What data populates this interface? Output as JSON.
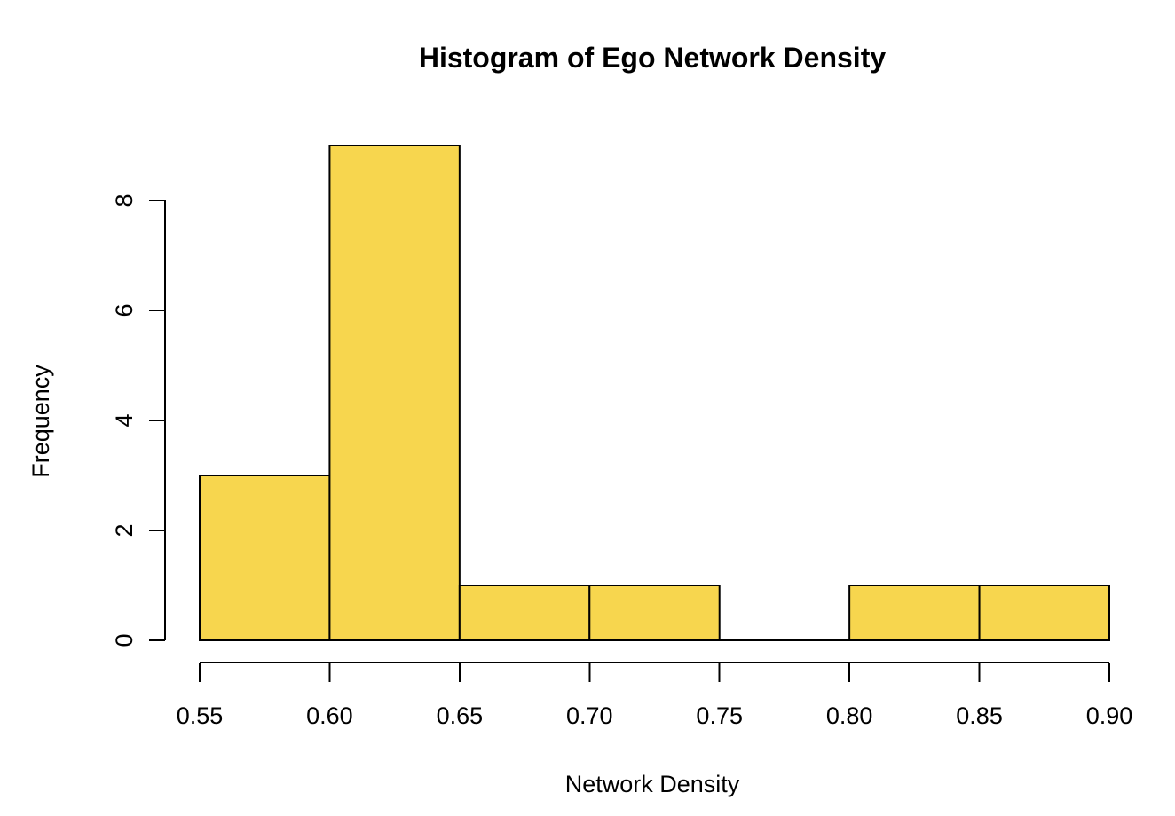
{
  "figure": {
    "title": "Histogram of Ego Network Density",
    "xlabel": "Network Density",
    "ylabel": "Frequency"
  },
  "chart_data": {
    "type": "bar",
    "subtype": "histogram",
    "title": "Histogram of Ego Network Density",
    "xlabel": "Network Density",
    "ylabel": "Frequency",
    "bin_edges": [
      0.55,
      0.6,
      0.65,
      0.7,
      0.75,
      0.8,
      0.85,
      0.9
    ],
    "counts": [
      3,
      9,
      1,
      1,
      0,
      1,
      1
    ],
    "x_ticks": [
      0.55,
      0.6,
      0.65,
      0.7,
      0.75,
      0.8,
      0.85,
      0.9
    ],
    "x_tick_labels": [
      "0.55",
      "0.60",
      "0.65",
      "0.70",
      "0.75",
      "0.80",
      "0.85",
      "0.90"
    ],
    "y_ticks": [
      0,
      2,
      4,
      6,
      8
    ],
    "y_tick_labels": [
      "0",
      "2",
      "4",
      "6",
      "8"
    ],
    "xlim": [
      0.55,
      0.9
    ],
    "ylim": [
      0,
      8
    ],
    "grid": false,
    "legend": null,
    "colors": {
      "bar_fill": "#F7D64E",
      "bar_stroke": "#000000",
      "axis": "#000000",
      "text": "#000000",
      "background": "#FFFFFF"
    }
  }
}
